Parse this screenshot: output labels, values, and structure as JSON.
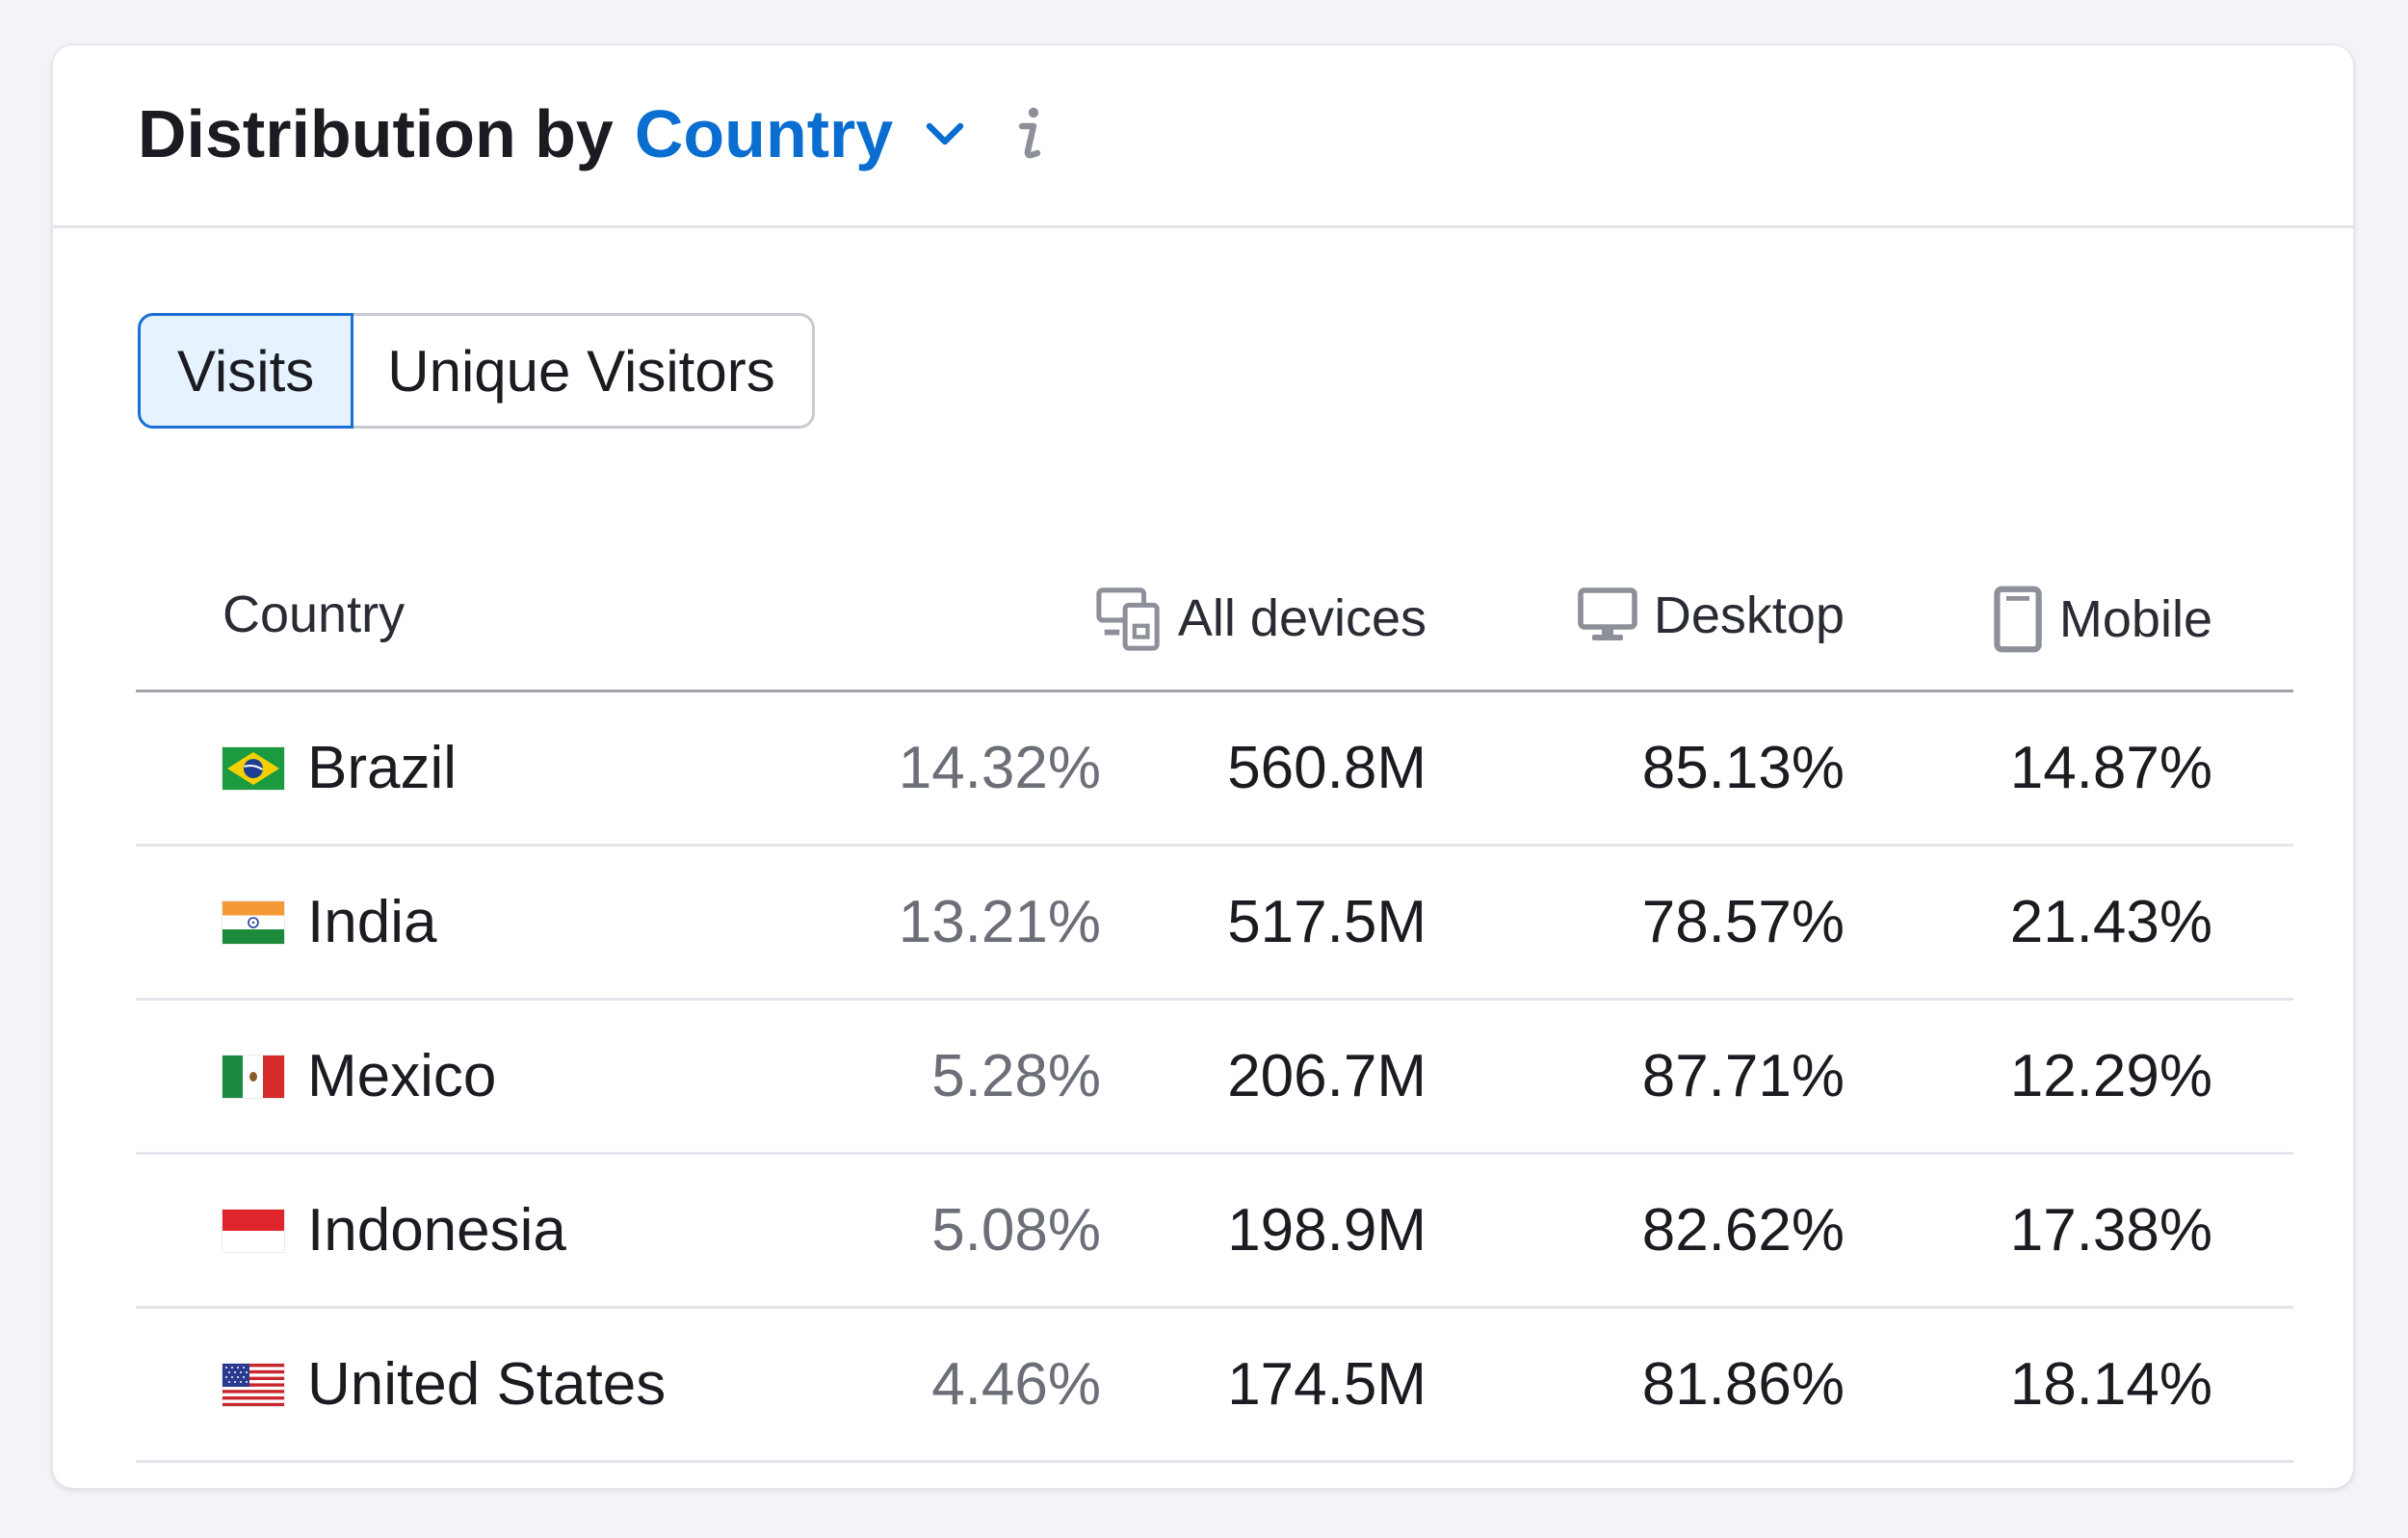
{
  "header": {
    "title_prefix": "Distribution by",
    "title_accent": "Country",
    "chevron_icon": "chevron-down-icon",
    "info_icon": "info-icon",
    "accent_color": "#0a6ed1"
  },
  "toggle": {
    "options": [
      {
        "label": "Visits",
        "active": true
      },
      {
        "label": "Unique Visitors",
        "active": false
      }
    ]
  },
  "table": {
    "columns": {
      "country": "Country",
      "all_devices": "All devices",
      "desktop": "Desktop",
      "mobile": "Mobile"
    },
    "column_icons": {
      "all_devices": "devices-icon",
      "desktop": "desktop-icon",
      "mobile": "mobile-icon"
    },
    "rows": [
      {
        "country": "Brazil",
        "flag": "brazil-flag-icon",
        "share": "14.32%",
        "all_devices": "560.8M",
        "desktop": "85.13%",
        "mobile": "14.87%"
      },
      {
        "country": "India",
        "flag": "india-flag-icon",
        "share": "13.21%",
        "all_devices": "517.5M",
        "desktop": "78.57%",
        "mobile": "21.43%"
      },
      {
        "country": "Mexico",
        "flag": "mexico-flag-icon",
        "share": "5.28%",
        "all_devices": "206.7M",
        "desktop": "87.71%",
        "mobile": "12.29%"
      },
      {
        "country": "Indonesia",
        "flag": "indonesia-flag-icon",
        "share": "5.08%",
        "all_devices": "198.9M",
        "desktop": "82.62%",
        "mobile": "17.38%"
      },
      {
        "country": "United States",
        "flag": "united-states-flag-icon",
        "share": "4.46%",
        "all_devices": "174.5M",
        "desktop": "81.86%",
        "mobile": "18.14%"
      }
    ]
  }
}
